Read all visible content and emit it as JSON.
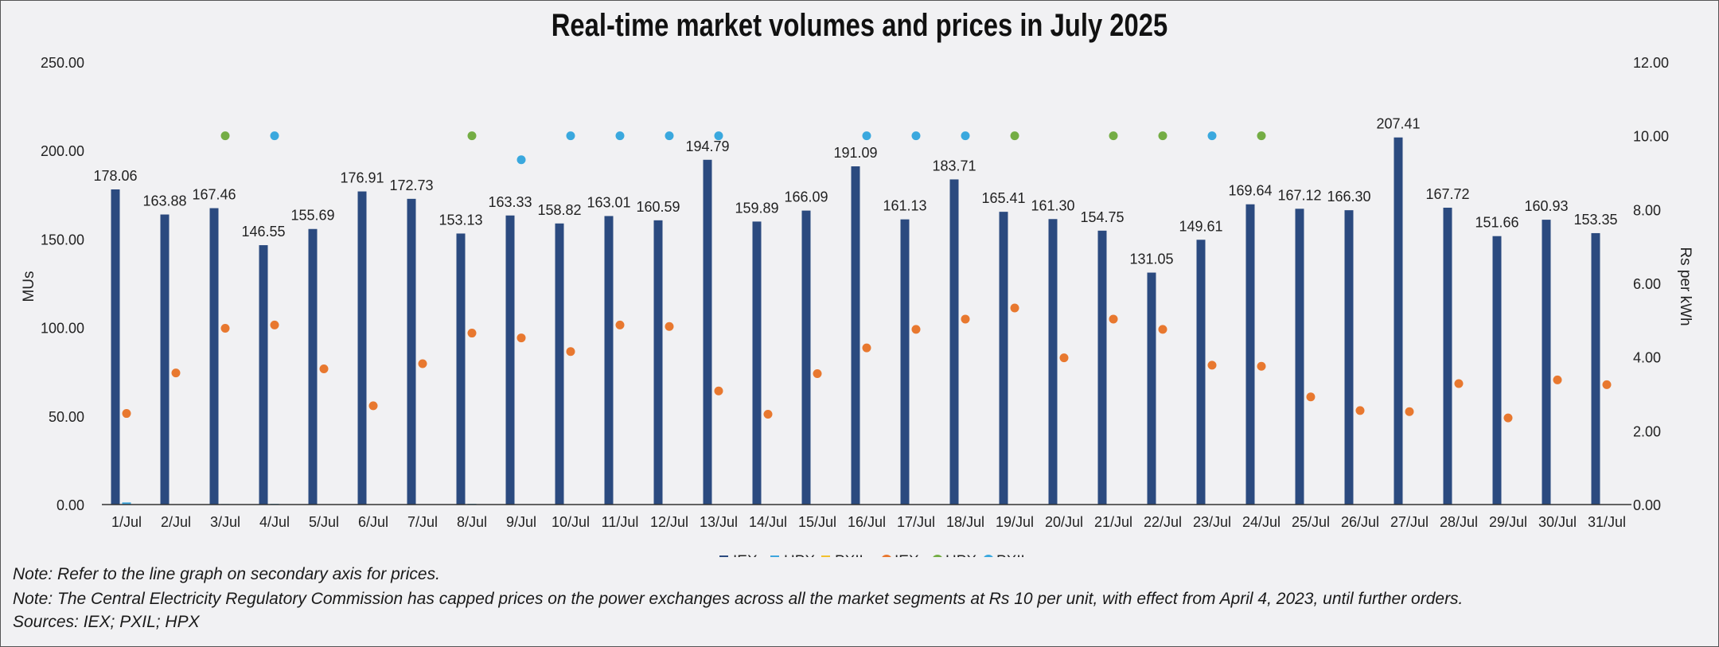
{
  "chart_data": {
    "type": "bar",
    "title": "Real-time market volumes and prices in July 2025",
    "ylabel": "MUs",
    "y2label": "Rs per kWh",
    "ylim": [
      0,
      250
    ],
    "y2lim": [
      0,
      12
    ],
    "yticks": [
      "0.00",
      "50.00",
      "100.00",
      "150.00",
      "200.00",
      "250.00"
    ],
    "y2ticks": [
      "0.00",
      "2.00",
      "4.00",
      "6.00",
      "8.00",
      "10.00",
      "12.00"
    ],
    "categories": [
      "1/Jul",
      "2/Jul",
      "3/Jul",
      "4/Jul",
      "5/Jul",
      "6/Jul",
      "7/Jul",
      "8/Jul",
      "9/Jul",
      "10/Jul",
      "11/Jul",
      "12/Jul",
      "13/Jul",
      "14/Jul",
      "15/Jul",
      "16/Jul",
      "17/Jul",
      "18/Jul",
      "19/Jul",
      "20/Jul",
      "21/Jul",
      "22/Jul",
      "23/Jul",
      "24/Jul",
      "25/Jul",
      "26/Jul",
      "27/Jul",
      "28/Jul",
      "29/Jul",
      "30/Jul",
      "31/Jul"
    ],
    "bar_series": [
      {
        "name": "IEX",
        "color": "#2b4a7f",
        "values": [
          178.06,
          163.88,
          167.46,
          146.55,
          155.69,
          176.91,
          172.73,
          153.13,
          163.33,
          158.82,
          163.01,
          160.59,
          194.79,
          159.89,
          166.09,
          191.09,
          161.13,
          183.71,
          165.41,
          161.3,
          154.75,
          131.05,
          149.61,
          169.64,
          167.12,
          166.3,
          207.41,
          167.72,
          151.66,
          160.93,
          153.35
        ]
      },
      {
        "name": "HPX",
        "color": "#3ea6dd",
        "values": [
          1.2,
          0,
          0.3,
          0.4,
          0,
          0,
          0,
          0.4,
          0,
          0,
          0,
          0,
          0,
          0,
          0,
          0,
          0,
          0,
          0,
          0,
          0,
          0,
          0,
          0,
          0,
          0,
          0,
          0,
          0,
          0,
          0
        ]
      },
      {
        "name": "PXIL",
        "color": "#f2c12e",
        "values": [
          0,
          0,
          0,
          0,
          0,
          0,
          0,
          0,
          0,
          0,
          0,
          0,
          0,
          0,
          0,
          0,
          0,
          0,
          0,
          0,
          0,
          0,
          0,
          0,
          0,
          0,
          0,
          0,
          0,
          0,
          0
        ]
      }
    ],
    "bar_labels": [
      "178.06",
      "163.88",
      "167.46",
      "146.55",
      "155.69",
      "176.91",
      "172.73",
      "153.13",
      "163.33",
      "158.82",
      "163.01",
      "160.59",
      "194.79",
      "159.89",
      "166.09",
      "191.09",
      "161.13",
      "183.71",
      "165.41",
      "161.30",
      "154.75",
      "131.05",
      "149.61",
      "169.64",
      "167.12",
      "166.30",
      "207.41",
      "167.72",
      "151.66",
      "160.93",
      "153.35"
    ],
    "line_series": [
      {
        "name": "IEX",
        "color": "#e8782f",
        "values": [
          2.47,
          3.57,
          4.78,
          4.87,
          3.68,
          2.68,
          3.82,
          4.65,
          4.52,
          4.15,
          4.87,
          4.83,
          3.08,
          2.45,
          3.55,
          4.25,
          4.75,
          5.03,
          5.33,
          3.98,
          5.03,
          4.75,
          3.78,
          3.75,
          2.92,
          2.55,
          2.52,
          3.28,
          2.35,
          3.38,
          3.25
        ]
      },
      {
        "name": "HPX",
        "color": "#74ad44",
        "values": [
          null,
          null,
          10.0,
          null,
          null,
          null,
          null,
          10.0,
          null,
          null,
          null,
          null,
          null,
          null,
          null,
          null,
          null,
          null,
          10.0,
          null,
          10.0,
          10.0,
          null,
          10.0,
          null,
          null,
          null,
          null,
          null,
          null,
          null
        ]
      },
      {
        "name": "PXIL",
        "color": "#3aa8de",
        "values": [
          null,
          null,
          null,
          10.0,
          null,
          null,
          null,
          null,
          9.35,
          10.0,
          10.0,
          10.0,
          10.0,
          null,
          null,
          10.0,
          10.0,
          10.0,
          null,
          null,
          null,
          null,
          10.0,
          null,
          null,
          null,
          null,
          null,
          null,
          null,
          null
        ]
      }
    ],
    "legend": {
      "position": "bottom",
      "entries": [
        {
          "label": "IEX",
          "kind": "bar",
          "color": "#2b4a7f"
        },
        {
          "label": "HPX",
          "kind": "bar",
          "color": "#3ea6dd"
        },
        {
          "label": "PXIL",
          "kind": "bar",
          "color": "#f2c12e"
        },
        {
          "label": "IEX",
          "kind": "dot",
          "color": "#e8782f"
        },
        {
          "label": "HPX",
          "kind": "dot",
          "color": "#74ad44"
        },
        {
          "label": "PXIL",
          "kind": "dot",
          "color": "#3aa8de"
        }
      ]
    }
  },
  "notes": {
    "note1": "Note: Refer to the line graph on secondary axis for prices.",
    "note2": "Note: The Central Electricity Regulatory Commission has capped prices on the power exchanges across all the market segments at Rs 10 per unit, with effect from April 4, 2023, until further orders.",
    "sources": "Sources: IEX; PXIL; HPX"
  }
}
